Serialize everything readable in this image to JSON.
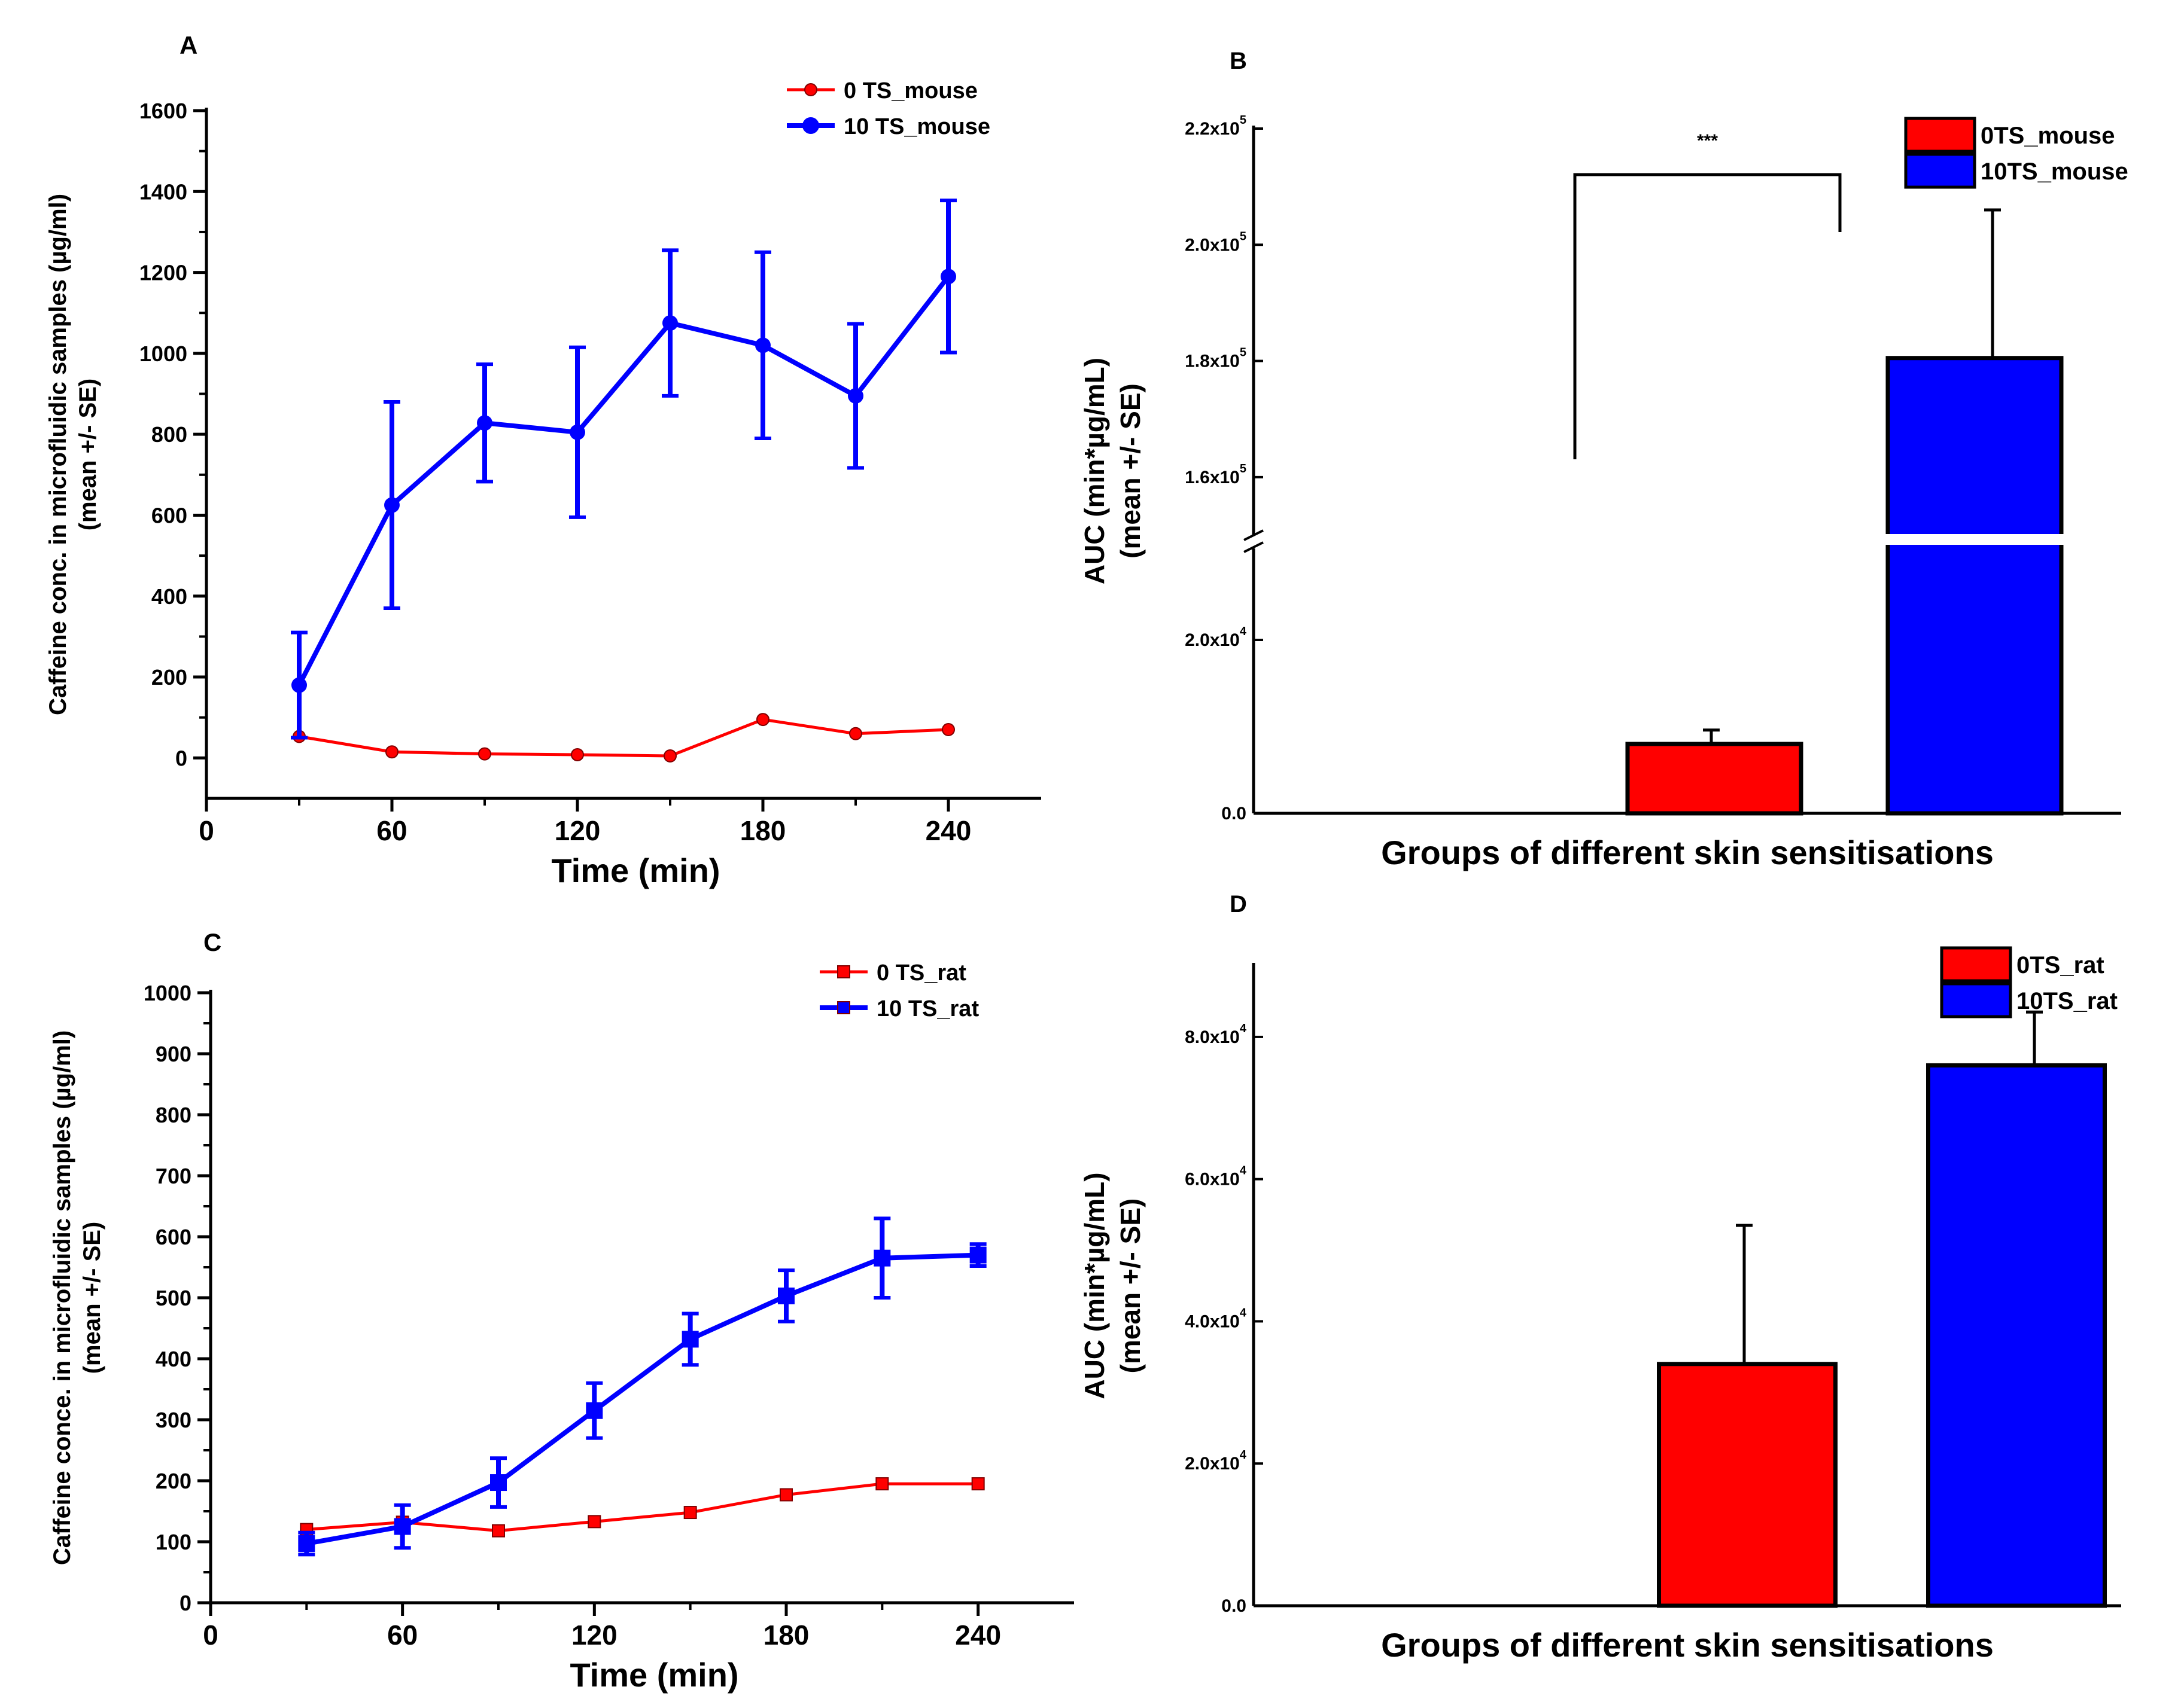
{
  "figure": {
    "panels": [
      "A",
      "B",
      "C",
      "D"
    ]
  },
  "chart_data": [
    {
      "id": "A",
      "panel_label": "A",
      "type": "line",
      "title": "",
      "xlabel": "Time (min)",
      "ylabel": "Caffeine conc. in microfluidic samples (µg/ml)",
      "ylabel2": "(mean +/- SE)",
      "xlim": [
        0,
        270
      ],
      "ylim": [
        -100,
        1600
      ],
      "xticks": [
        0,
        60,
        120,
        180,
        240
      ],
      "yticks": [
        0,
        200,
        400,
        600,
        800,
        1000,
        1200,
        1400,
        1600
      ],
      "legend_position": "top-right",
      "series": [
        {
          "name": "0 TS_mouse",
          "color": "#ff0000",
          "marker": "circle",
          "x": [
            30,
            60,
            90,
            120,
            150,
            180,
            210,
            240
          ],
          "y": [
            53,
            15,
            10,
            8,
            5,
            95,
            60,
            70
          ],
          "err": [
            0,
            0,
            0,
            0,
            0,
            0,
            0,
            0
          ]
        },
        {
          "name": "10 TS_mouse",
          "color": "#0000ff",
          "marker": "circle",
          "x": [
            30,
            60,
            90,
            120,
            150,
            180,
            210,
            240
          ],
          "y": [
            180,
            625,
            828,
            805,
            1075,
            1020,
            895,
            1190
          ],
          "err": [
            130,
            255,
            145,
            210,
            180,
            230,
            178,
            188
          ]
        }
      ]
    },
    {
      "id": "B",
      "panel_label": "B",
      "type": "bar",
      "title": "",
      "xlabel": "Groups of different skin sensitisations",
      "ylabel": "AUC (min*µg/mL)",
      "ylabel2": "(mean +/- SE)",
      "broken_axis": {
        "lower": [
          0,
          30000
        ],
        "upper": [
          150000,
          220000
        ]
      },
      "yticks": [
        0,
        20000,
        160000,
        180000,
        200000,
        220000
      ],
      "ytick_labels": [
        "0.0",
        "2.0x10⁴",
        "1.6x10⁵",
        "1.8x10⁵",
        "2.0x10⁵",
        "2.2x10⁵"
      ],
      "significance": "***",
      "legend_position": "top-right",
      "series": [
        {
          "name": "0TS_mouse",
          "color": "#ff0000",
          "value": 8000,
          "err": 1600
        },
        {
          "name": "10TS_mouse",
          "color": "#0000ff",
          "value": 180500,
          "err": 25500
        }
      ]
    },
    {
      "id": "C",
      "panel_label": "C",
      "type": "line",
      "title": "",
      "xlabel": "Time (min)",
      "ylabel": "Caffeine conce. in microfluidic samples (µg/ml)",
      "ylabel2": "(mean +/- SE)",
      "xlim": [
        0,
        270
      ],
      "ylim": [
        0,
        1000
      ],
      "xticks": [
        0,
        60,
        120,
        180,
        240
      ],
      "yticks": [
        0,
        100,
        200,
        300,
        400,
        500,
        600,
        700,
        800,
        900,
        1000
      ],
      "legend_position": "top-right",
      "series": [
        {
          "name": "0 TS_rat",
          "color": "#ff0000",
          "marker": "square",
          "x": [
            30,
            60,
            90,
            120,
            150,
            180,
            210,
            240
          ],
          "y": [
            120,
            132,
            118,
            133,
            148,
            177,
            195,
            195
          ],
          "err": [
            0,
            0,
            0,
            0,
            0,
            0,
            0,
            0
          ]
        },
        {
          "name": "10 TS_rat",
          "color": "#0000ff",
          "marker": "square",
          "x": [
            30,
            60,
            90,
            120,
            150,
            180,
            210,
            240
          ],
          "y": [
            97,
            125,
            197,
            315,
            432,
            503,
            565,
            570
          ],
          "err": [
            18,
            35,
            40,
            45,
            42,
            42,
            65,
            18
          ]
        }
      ]
    },
    {
      "id": "D",
      "panel_label": "D",
      "type": "bar",
      "title": "",
      "xlabel": "Groups of different skin sensitisations",
      "ylabel": "AUC (min*µg/mL)",
      "ylabel2": "(mean +/- SE)",
      "ylim": [
        0,
        90000
      ],
      "yticks": [
        0,
        20000,
        40000,
        60000,
        80000
      ],
      "ytick_labels": [
        "0.0",
        "2.0x10⁴",
        "4.0x10⁴",
        "6.0x10⁴",
        "8.0x10⁴"
      ],
      "legend_position": "top-right",
      "series": [
        {
          "name": "0TS_rat",
          "color": "#ff0000",
          "value": 34000,
          "err": 19500
        },
        {
          "name": "10TS_rat",
          "color": "#0000ff",
          "value": 76000,
          "err": 7500
        }
      ]
    }
  ]
}
